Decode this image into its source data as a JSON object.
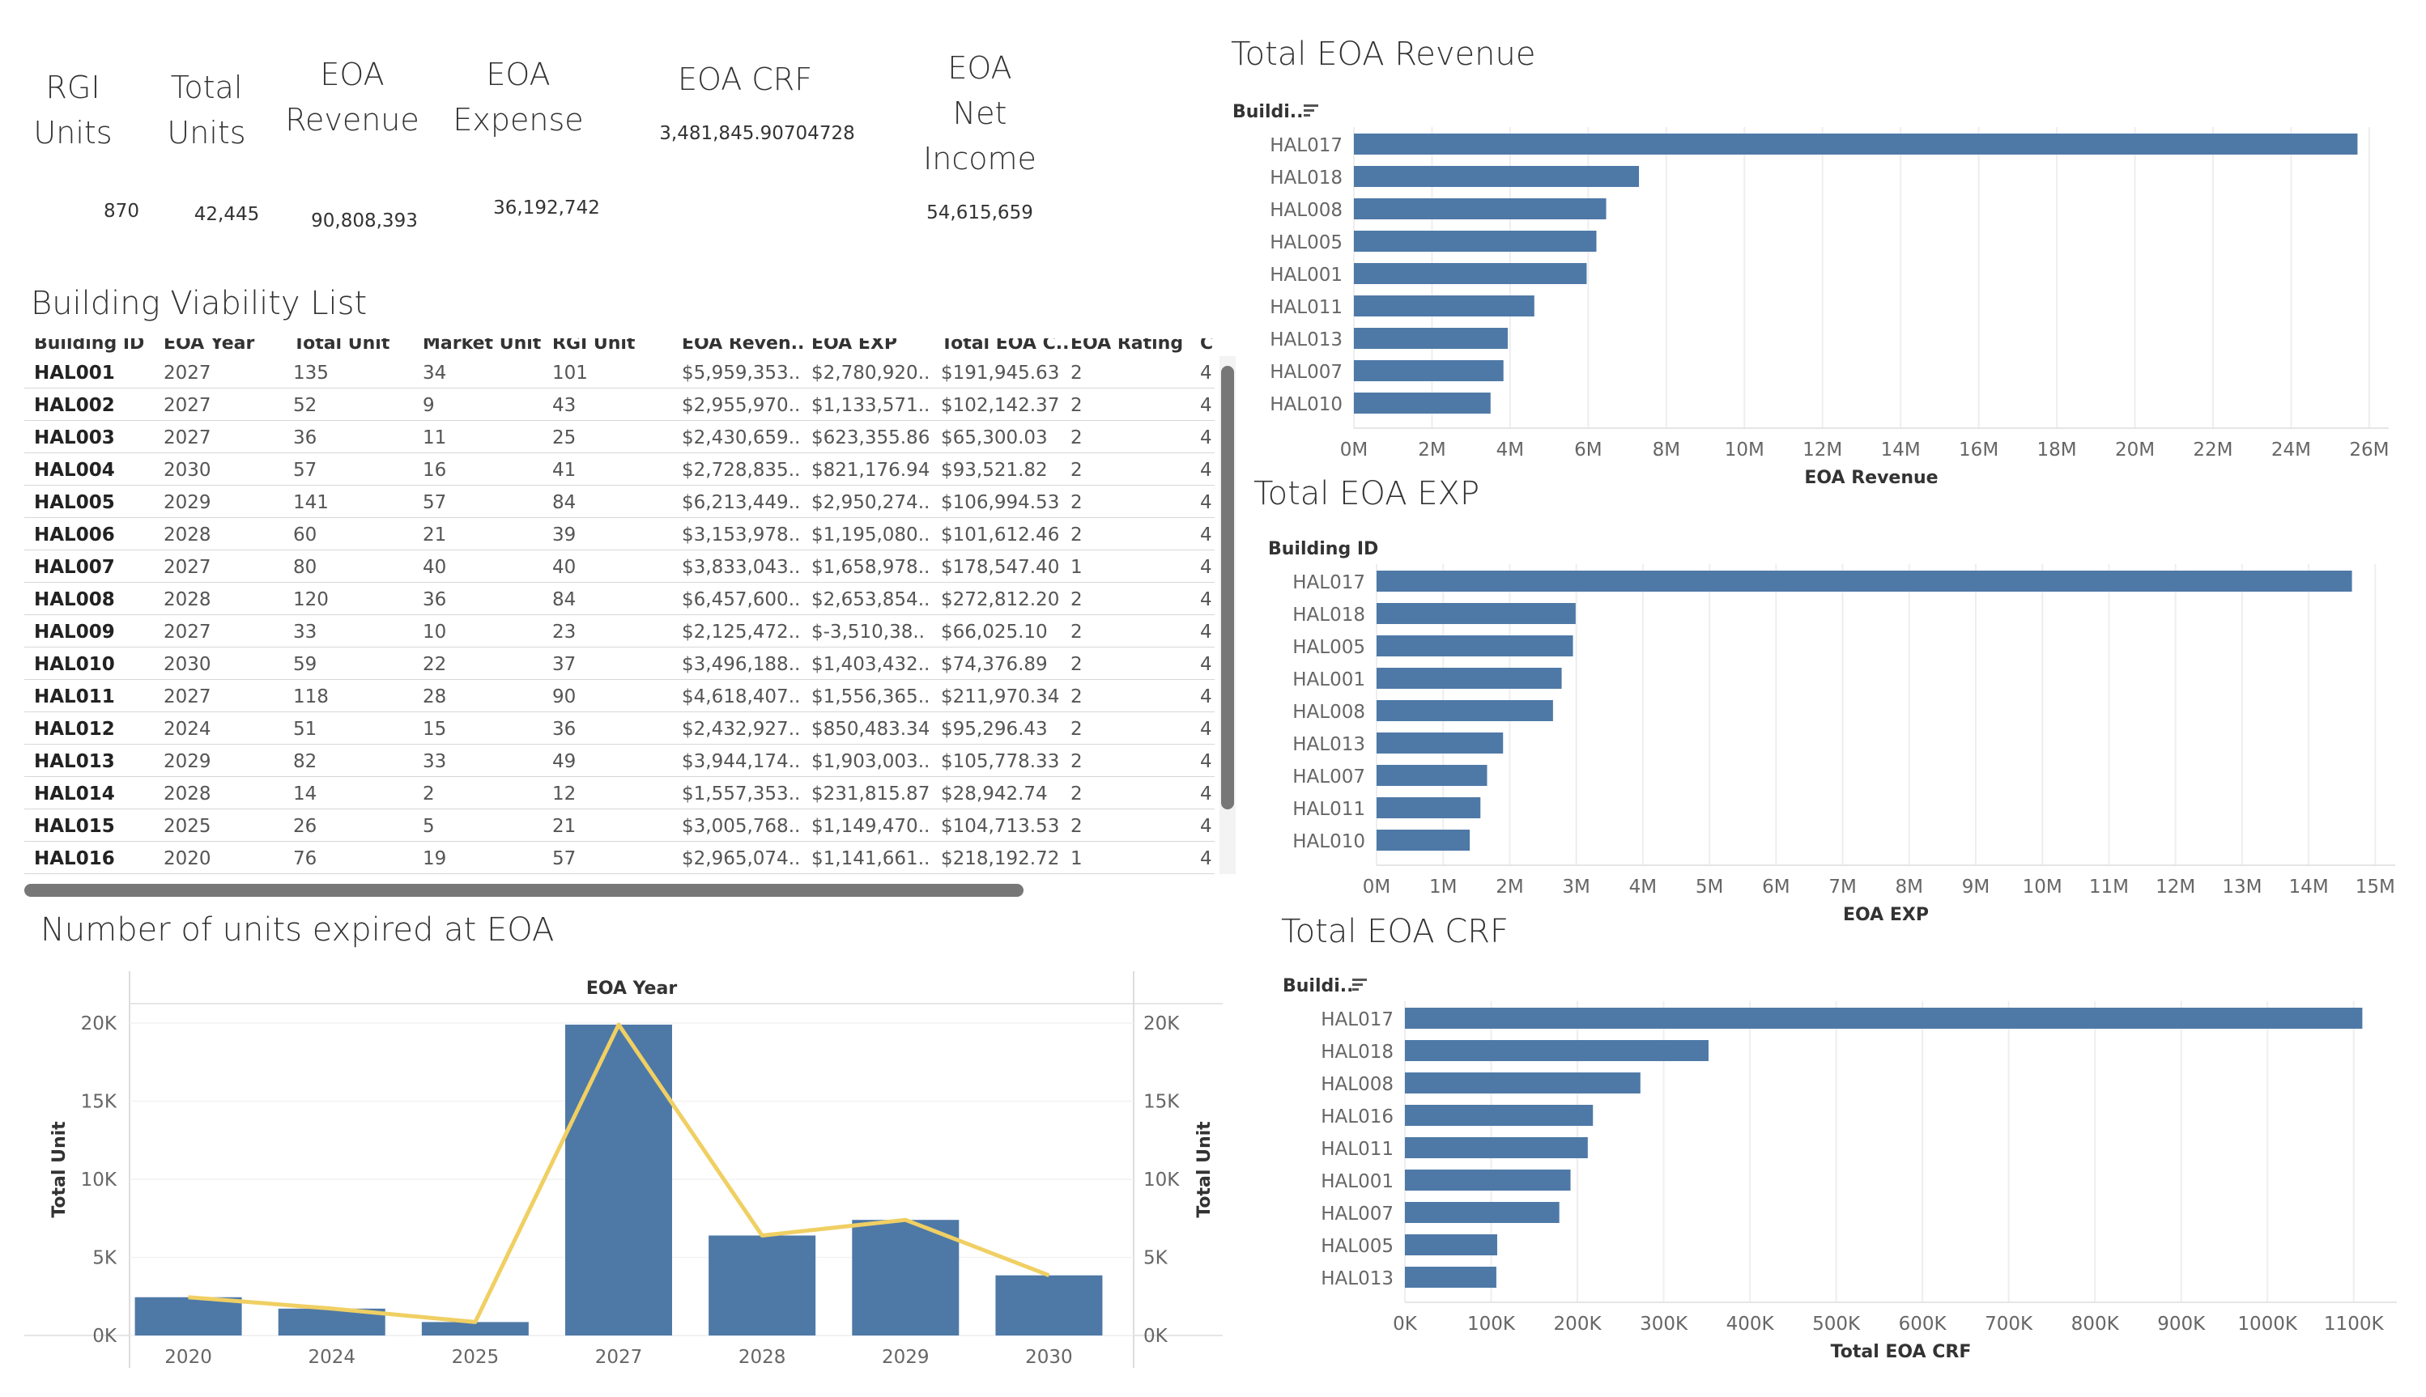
{
  "kpis": [
    {
      "title": "RGI\nUnits",
      "value": "870"
    },
    {
      "title": "Total\nUnits",
      "value": "42,445"
    },
    {
      "title": "EOA\nRevenue",
      "value": "90,808,393"
    },
    {
      "title": "EOA\nExpense",
      "value": "36,192,742"
    },
    {
      "title": "EOA CRF",
      "value": "3,481,845.90704728"
    },
    {
      "title": "EOA\nNet\nIncome",
      "value": "54,615,659"
    }
  ],
  "viability": {
    "title": "Building Viability List",
    "columns": [
      "Building ID",
      "EOA Year",
      "Total Unit",
      "Market Unit",
      "RGI Unit",
      "EOA Reven..",
      "EOA EXP",
      "Total EOA C..",
      "EOA Rating",
      "C"
    ],
    "rows": [
      [
        "HAL001",
        "2027",
        "135",
        "34",
        "101",
        "$5,959,353..",
        "$2,780,920..",
        "$191,945.63",
        "2",
        "4"
      ],
      [
        "HAL002",
        "2027",
        "52",
        "9",
        "43",
        "$2,955,970..",
        "$1,133,571..",
        "$102,142.37",
        "2",
        "4"
      ],
      [
        "HAL003",
        "2027",
        "36",
        "11",
        "25",
        "$2,430,659..",
        "$623,355.86",
        "$65,300.03",
        "2",
        "4"
      ],
      [
        "HAL004",
        "2030",
        "57",
        "16",
        "41",
        "$2,728,835..",
        "$821,176.94",
        "$93,521.82",
        "2",
        "4"
      ],
      [
        "HAL005",
        "2029",
        "141",
        "57",
        "84",
        "$6,213,449..",
        "$2,950,274..",
        "$106,994.53",
        "2",
        "4"
      ],
      [
        "HAL006",
        "2028",
        "60",
        "21",
        "39",
        "$3,153,978..",
        "$1,195,080..",
        "$101,612.46",
        "2",
        "4"
      ],
      [
        "HAL007",
        "2027",
        "80",
        "40",
        "40",
        "$3,833,043..",
        "$1,658,978..",
        "$178,547.40",
        "1",
        "4"
      ],
      [
        "HAL008",
        "2028",
        "120",
        "36",
        "84",
        "$6,457,600..",
        "$2,653,854..",
        "$272,812.20",
        "2",
        "4"
      ],
      [
        "HAL009",
        "2027",
        "33",
        "10",
        "23",
        "$2,125,472..",
        "$-3,510,38..",
        "$66,025.10",
        "2",
        "4"
      ],
      [
        "HAL010",
        "2030",
        "59",
        "22",
        "37",
        "$3,496,188..",
        "$1,403,432..",
        "$74,376.89",
        "2",
        "4"
      ],
      [
        "HAL011",
        "2027",
        "118",
        "28",
        "90",
        "$4,618,407..",
        "$1,556,365..",
        "$211,970.34",
        "2",
        "4"
      ],
      [
        "HAL012",
        "2024",
        "51",
        "15",
        "36",
        "$2,432,927..",
        "$850,483.34",
        "$95,296.43",
        "2",
        "4"
      ],
      [
        "HAL013",
        "2029",
        "82",
        "33",
        "49",
        "$3,944,174..",
        "$1,903,003..",
        "$105,778.33",
        "2",
        "4"
      ],
      [
        "HAL014",
        "2028",
        "14",
        "2",
        "12",
        "$1,557,353..",
        "$231,815.87",
        "$28,942.74",
        "2",
        "4"
      ],
      [
        "HAL015",
        "2025",
        "26",
        "5",
        "21",
        "$3,005,768..",
        "$1,149,470..",
        "$104,713.53",
        "2",
        "4"
      ],
      [
        "HAL016",
        "2020",
        "76",
        "19",
        "57",
        "$2,965,074..",
        "$1,141,661..",
        "$218,192.72",
        "1",
        "4"
      ]
    ]
  },
  "units_chart": {
    "title": "Number of units expired at EOA"
  },
  "colors": {
    "bar": "#4e79a7",
    "line": "#f0cf63",
    "grid": "#eeeeee",
    "axis_text": "#666666"
  },
  "chart_data": [
    {
      "type": "bar",
      "title": "Total EOA Revenue",
      "ylabel": "Buildi..",
      "xlabel": "EOA Revenue",
      "categories": [
        "HAL017",
        "HAL018",
        "HAL008",
        "HAL005",
        "HAL001",
        "HAL011",
        "HAL013",
        "HAL007",
        "HAL010"
      ],
      "values": [
        25700000,
        7300000,
        6460000,
        6210000,
        5960000,
        4620000,
        3940000,
        3830000,
        3500000
      ],
      "xlim": [
        0,
        26500000
      ],
      "ticks": [
        "0M",
        "2M",
        "4M",
        "6M",
        "8M",
        "10M",
        "12M",
        "14M",
        "16M",
        "18M",
        "20M",
        "22M",
        "24M",
        "26M"
      ],
      "grid": true
    },
    {
      "type": "bar",
      "title": "Total EOA EXP",
      "ylabel": "Building ID",
      "xlabel": "EOA EXP",
      "categories": [
        "HAL017",
        "HAL018",
        "HAL005",
        "HAL001",
        "HAL008",
        "HAL013",
        "HAL007",
        "HAL011",
        "HAL010"
      ],
      "values": [
        14650000,
        2990000,
        2950000,
        2780000,
        2650000,
        1900000,
        1660000,
        1560000,
        1400000
      ],
      "xlim": [
        0,
        15300000
      ],
      "ticks": [
        "0M",
        "1M",
        "2M",
        "3M",
        "4M",
        "5M",
        "6M",
        "7M",
        "8M",
        "9M",
        "10M",
        "11M",
        "12M",
        "13M",
        "14M",
        "15M"
      ],
      "grid": true
    },
    {
      "type": "bar",
      "title": "Total EOA CRF",
      "ylabel": "Buildi..",
      "xlabel": "Total EOA CRF",
      "categories": [
        "HAL017",
        "HAL018",
        "HAL008",
        "HAL016",
        "HAL011",
        "HAL001",
        "HAL007",
        "HAL005",
        "HAL013"
      ],
      "values": [
        1110000,
        352000,
        273000,
        218000,
        212000,
        192000,
        179000,
        107000,
        106000
      ],
      "xlim": [
        0,
        1150000
      ],
      "ticks": [
        "0K",
        "100K",
        "200K",
        "300K",
        "400K",
        "500K",
        "600K",
        "700K",
        "800K",
        "900K",
        "1000K",
        "1100K"
      ],
      "grid": true
    },
    {
      "type": "bar",
      "title": "EOA Year",
      "xlabel": "",
      "ylabel": "Total Unit",
      "categories": [
        "2020",
        "2024",
        "2025",
        "2027",
        "2028",
        "2029",
        "2030"
      ],
      "series": [
        {
          "values": [
            2450,
            1720,
            860,
            19900,
            6400,
            7400,
            3850
          ]
        },
        {
          "values": [
            2450,
            1720,
            860,
            19900,
            6400,
            7400,
            3850
          ]
        }
      ],
      "ylim": [
        0,
        20000
      ],
      "ticks": [
        "0K",
        "5K",
        "10K",
        "15K",
        "20K"
      ]
    }
  ]
}
